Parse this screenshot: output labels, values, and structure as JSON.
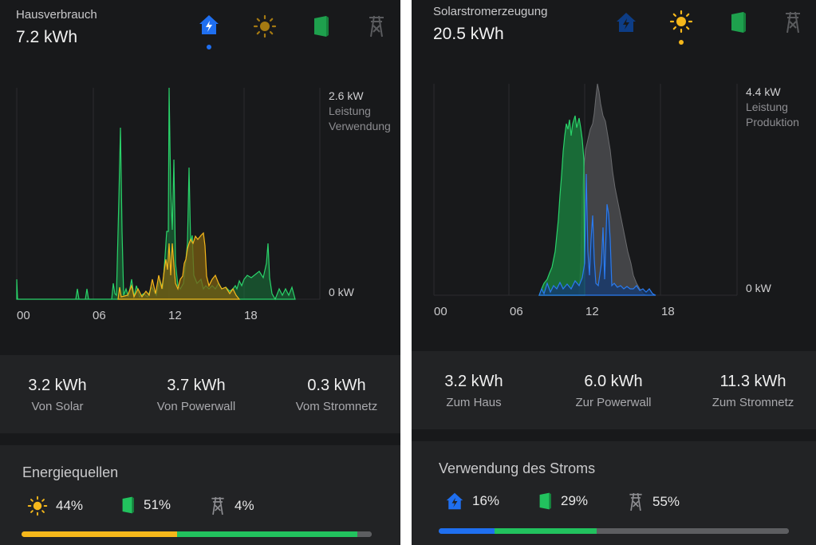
{
  "left": {
    "title": "Hausverbrauch",
    "total": "7.2 kWh",
    "tabs": [
      "home-icon",
      "sun-icon",
      "powerwall-icon",
      "grid-tower-icon"
    ],
    "active_tab": "home-icon",
    "chart": {
      "max": "2.6 kW",
      "label1": "Leistung",
      "label2": "Verwendung",
      "min": "0 kW",
      "ticks": [
        "00",
        "06",
        "12",
        "18"
      ]
    },
    "stats": [
      {
        "value": "3.2 kWh",
        "label": "Von Solar"
      },
      {
        "value": "3.7 kWh",
        "label": "Von Powerwall"
      },
      {
        "value": "0.3 kWh",
        "label": "Vom Stromnetz"
      }
    ],
    "sources": {
      "title": "Energiequellen",
      "items": [
        {
          "icon": "sun-icon",
          "pct": "44%"
        },
        {
          "icon": "powerwall-icon",
          "pct": "51%"
        },
        {
          "icon": "grid-tower-icon",
          "pct": "4%"
        }
      ],
      "bar": [
        44,
        51,
        4
      ]
    }
  },
  "right": {
    "title": "Solarstromerzeugung",
    "total": "20.5 kWh",
    "tabs": [
      "home-icon",
      "sun-icon",
      "powerwall-icon",
      "grid-tower-icon"
    ],
    "active_tab": "sun-icon",
    "chart": {
      "max": "4.4 kW",
      "label1": "Leistung",
      "label2": "Produktion",
      "min": "0 kW",
      "ticks": [
        "00",
        "06",
        "12",
        "18"
      ]
    },
    "stats": [
      {
        "value": "3.2 kWh",
        "label": "Zum Haus"
      },
      {
        "value": "6.0 kWh",
        "label": "Zur Powerwall"
      },
      {
        "value": "11.3 kWh",
        "label": "Zum Stromnetz"
      }
    ],
    "usage": {
      "title": "Verwendung des Stroms",
      "items": [
        {
          "icon": "home-icon",
          "pct": "16%"
        },
        {
          "icon": "powerwall-icon",
          "pct": "29%"
        },
        {
          "icon": "grid-tower-icon",
          "pct": "55%"
        }
      ],
      "bar": [
        16,
        29,
        55
      ]
    }
  },
  "colors": {
    "solar": "#f5b71b",
    "powerwall": "#22c25e",
    "grid": "#5d5e61",
    "home": "#1f6ff0",
    "background": "#18191b"
  }
}
